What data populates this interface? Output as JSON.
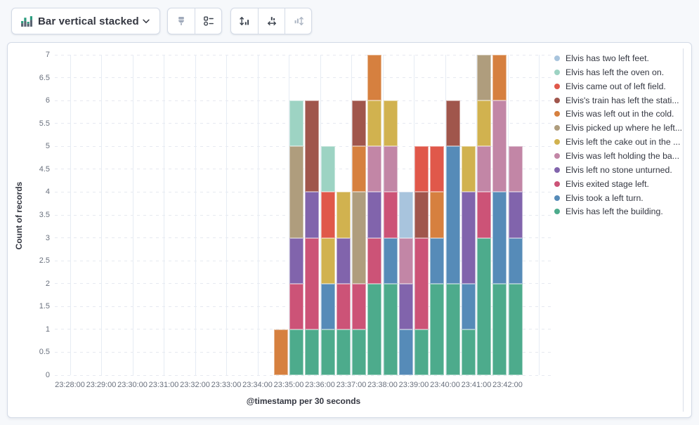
{
  "toolbar": {
    "chart_type": {
      "label": "Bar vertical stacked"
    },
    "style_buttons": [
      {
        "name": "brush",
        "disabled": true
      },
      {
        "name": "legend-settings",
        "disabled": false
      }
    ],
    "axis_buttons": [
      {
        "name": "fit-vertical-axis",
        "disabled": false
      },
      {
        "name": "fit-horizontal-axis",
        "disabled": false
      },
      {
        "name": "fit-both-axes",
        "disabled": true
      }
    ]
  },
  "chart_data": {
    "type": "bar",
    "mode": "vertical-stacked",
    "title": "Bar vertical stacked",
    "xlabel": "@timestamp per 30 seconds",
    "ylabel": "Count of records",
    "ylim": [
      0,
      7
    ],
    "grid": true,
    "legend_position": "right",
    "x_interval": "30 seconds",
    "y_ticks": [
      "0",
      "0.5",
      "1",
      "1.5",
      "2",
      "2.5",
      "3",
      "3.5",
      "4",
      "4.5",
      "5",
      "5.5",
      "6",
      "6.5",
      "7"
    ],
    "x_tick_labels": [
      "23:28:00",
      "23:29:00",
      "23:30:00",
      "23:31:00",
      "23:32:00",
      "23:33:00",
      "23:34:00",
      "23:35:00",
      "23:36:00",
      "23:37:00",
      "23:38:00",
      "23:39:00",
      "23:40:00",
      "23:41:00",
      "23:42:00"
    ],
    "bar_times": [
      "23:34:30",
      "23:35:00",
      "23:35:30",
      "23:36:00",
      "23:36:30",
      "23:37:00",
      "23:37:30",
      "23:38:00",
      "23:38:30",
      "23:39:00",
      "23:39:30",
      "23:40:00",
      "23:40:30",
      "23:41:00",
      "23:41:30",
      "23:42:00"
    ],
    "bar_totals": [
      1,
      6,
      6,
      5,
      4,
      6,
      7,
      6,
      4,
      5,
      5,
      6,
      5,
      7,
      7,
      5
    ],
    "series": [
      {
        "name": "Elvis has two left feet.",
        "color": "#A8C4DD",
        "values": [
          0,
          0,
          0,
          0,
          0,
          0,
          0,
          0,
          1,
          0,
          0,
          0,
          0,
          0,
          0,
          0
        ]
      },
      {
        "name": "Elvis has left the oven on.",
        "color": "#9DD3C3",
        "values": [
          0,
          1,
          0,
          1,
          0,
          0,
          0,
          0,
          0,
          0,
          0,
          0,
          0,
          0,
          0,
          0
        ]
      },
      {
        "name": "Elvis came out of left field.",
        "color": "#E0584A",
        "values": [
          0,
          0,
          0,
          1,
          0,
          0,
          0,
          0,
          0,
          1,
          1,
          0,
          0,
          0,
          0,
          0
        ]
      },
      {
        "name": "Elvis's train has left the stati...",
        "color": "#A0564C",
        "values": [
          0,
          0,
          2,
          0,
          0,
          1,
          0,
          0,
          0,
          1,
          0,
          1,
          0,
          0,
          0,
          0
        ]
      },
      {
        "name": "Elvis was left out in the cold.",
        "color": "#D6803F",
        "values": [
          1,
          0,
          0,
          0,
          0,
          1,
          1,
          0,
          0,
          0,
          1,
          0,
          0,
          0,
          1,
          0
        ]
      },
      {
        "name": "Elvis picked up where he left...",
        "color": "#AF9D7D",
        "values": [
          0,
          2,
          0,
          0,
          0,
          2,
          0,
          0,
          0,
          0,
          0,
          0,
          0,
          1,
          0,
          0
        ]
      },
      {
        "name": "Elvis left the cake out in the ...",
        "color": "#D1B24F",
        "values": [
          0,
          0,
          0,
          1,
          1,
          0,
          1,
          1,
          0,
          0,
          0,
          0,
          1,
          1,
          0,
          0
        ]
      },
      {
        "name": "Elvis was left holding the ba...",
        "color": "#C286A6",
        "values": [
          0,
          0,
          0,
          0,
          0,
          0,
          1,
          1,
          1,
          0,
          0,
          0,
          0,
          1,
          2,
          1
        ]
      },
      {
        "name": "Elvis left no stone unturned.",
        "color": "#8164AC",
        "values": [
          0,
          1,
          1,
          0,
          1,
          0,
          1,
          0,
          1,
          0,
          0,
          0,
          2,
          0,
          0,
          1
        ]
      },
      {
        "name": "Elvis exited stage left.",
        "color": "#CC5377",
        "values": [
          0,
          1,
          2,
          0,
          1,
          1,
          1,
          1,
          0,
          2,
          0,
          0,
          0,
          1,
          0,
          0
        ]
      },
      {
        "name": "Elvis took a left turn.",
        "color": "#568BB8",
        "values": [
          0,
          0,
          0,
          1,
          0,
          0,
          0,
          1,
          1,
          0,
          1,
          3,
          1,
          0,
          2,
          1
        ]
      },
      {
        "name": "Elvis has left the building.",
        "color": "#4DAB8C",
        "values": [
          0,
          1,
          1,
          1,
          1,
          1,
          2,
          2,
          0,
          1,
          2,
          2,
          1,
          3,
          2,
          2
        ]
      }
    ]
  }
}
